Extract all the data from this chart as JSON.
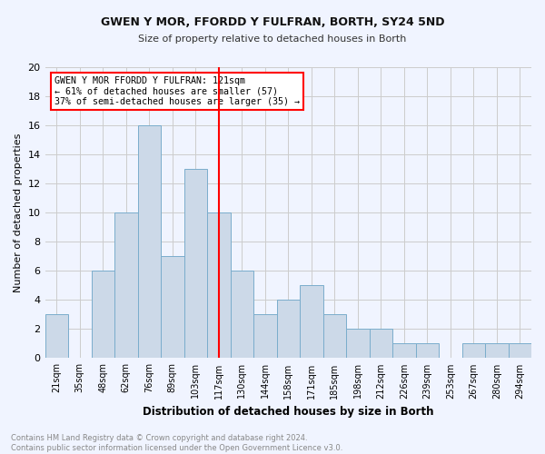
{
  "title1": "GWEN Y MOR, FFORDD Y FULFRAN, BORTH, SY24 5ND",
  "title2": "Size of property relative to detached houses in Borth",
  "xlabel": "Distribution of detached houses by size in Borth",
  "ylabel": "Number of detached properties",
  "categories": [
    "21sqm",
    "35sqm",
    "48sqm",
    "62sqm",
    "76sqm",
    "89sqm",
    "103sqm",
    "117sqm",
    "130sqm",
    "144sqm",
    "158sqm",
    "171sqm",
    "185sqm",
    "198sqm",
    "212sqm",
    "226sqm",
    "239sqm",
    "253sqm",
    "267sqm",
    "280sqm",
    "294sqm"
  ],
  "values": [
    3,
    0,
    6,
    10,
    16,
    7,
    13,
    10,
    6,
    3,
    4,
    5,
    3,
    2,
    2,
    1,
    1,
    0,
    1,
    1,
    1
  ],
  "bar_color": "#ccd9e8",
  "bar_edge_color": "#7aadcc",
  "vline_x_index": 7,
  "vline_color": "red",
  "annotation_line1": "GWEN Y MOR FFORDD Y FULFRAN: 121sqm",
  "annotation_line2": "← 61% of detached houses are smaller (57)",
  "annotation_line3": "37% of semi-detached houses are larger (35) →",
  "annotation_box_color": "white",
  "annotation_box_edge_color": "red",
  "ylim": [
    0,
    20
  ],
  "yticks": [
    0,
    2,
    4,
    6,
    8,
    10,
    12,
    14,
    16,
    18,
    20
  ],
  "grid_color": "#cccccc",
  "footer_text": "Contains HM Land Registry data © Crown copyright and database right 2024.\nContains public sector information licensed under the Open Government Licence v3.0.",
  "bg_color": "#f0f4ff"
}
